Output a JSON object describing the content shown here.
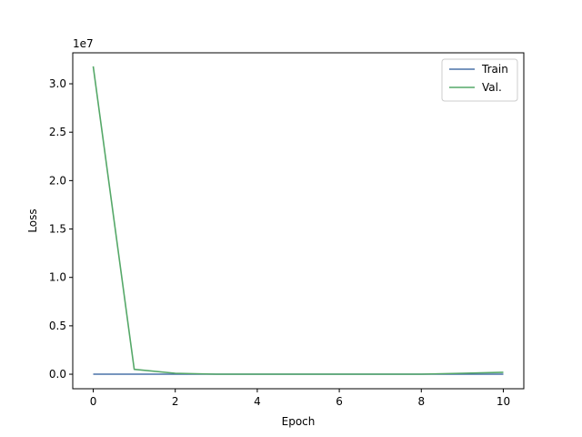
{
  "chart_data": {
    "type": "line",
    "title": "",
    "xlabel": "Epoch",
    "ylabel": "Loss",
    "y_offset_label": "1e7",
    "xlim": [
      -0.5,
      10.5
    ],
    "ylim": [
      -0.15,
      3.32
    ],
    "y_scale_note": "values in units of 1e7",
    "x_ticks": [
      0,
      2,
      4,
      6,
      8,
      10
    ],
    "x_tick_labels": [
      "0",
      "2",
      "4",
      "6",
      "8",
      "10"
    ],
    "y_ticks": [
      0.0,
      0.5,
      1.0,
      1.5,
      2.0,
      2.5,
      3.0
    ],
    "y_tick_labels": [
      "0.0",
      "0.5",
      "1.0",
      "1.5",
      "2.0",
      "2.5",
      "3.0"
    ],
    "legend_position": "top-right",
    "grid": false,
    "x": [
      0,
      1,
      2,
      3,
      4,
      5,
      6,
      7,
      8,
      9,
      10
    ],
    "series": [
      {
        "name": "Train",
        "color": "#4a72a8",
        "values": [
          0.0,
          0.0,
          0.0,
          0.0,
          0.0,
          0.0,
          0.0,
          0.0,
          0.0,
          0.0,
          0.0
        ]
      },
      {
        "name": "Val.",
        "color": "#55a868",
        "values": [
          3.18,
          0.05,
          0.01,
          0.0,
          0.0,
          0.0,
          0.0,
          0.0,
          0.0,
          0.01,
          0.02
        ]
      }
    ]
  }
}
